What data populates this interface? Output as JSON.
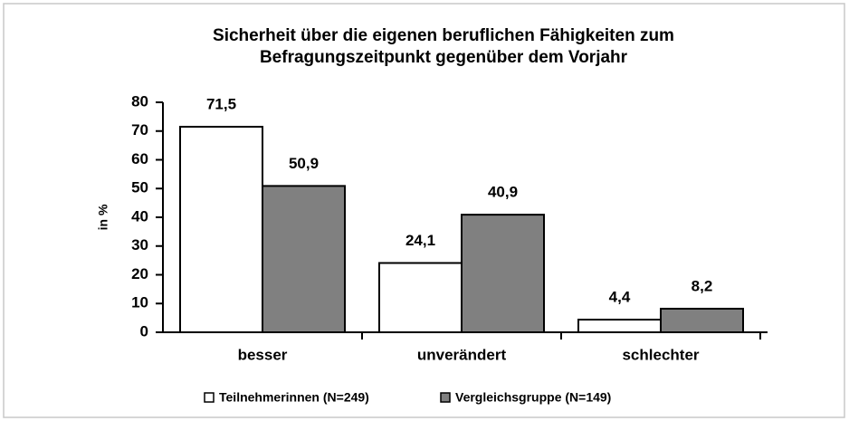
{
  "chart_data": {
    "type": "bar",
    "title": [
      "Sicherheit über die eigenen beruflichen Fähigkeiten zum",
      "Befragungszeitpunkt gegenüber dem Vorjahr"
    ],
    "y_label": "in %",
    "categories": [
      "besser",
      "unverändert",
      "schlechter"
    ],
    "series": [
      {
        "name": "Teilnehmerinnen (N=249)",
        "color": "#ffffff",
        "values": [
          71.5,
          24.1,
          4.4
        ],
        "value_labels": [
          "71,5",
          "24,1",
          "4,4"
        ]
      },
      {
        "name": "Vergleichsgruppe (N=149)",
        "color": "#808080",
        "values": [
          50.9,
          40.9,
          8.2
        ],
        "value_labels": [
          "50,9",
          "40,9",
          "8,2"
        ]
      }
    ],
    "ylim": [
      0,
      80
    ],
    "yticks": [
      0,
      10,
      20,
      30,
      40,
      50,
      60,
      70,
      80
    ],
    "grid": false,
    "legend": "bottom"
  }
}
